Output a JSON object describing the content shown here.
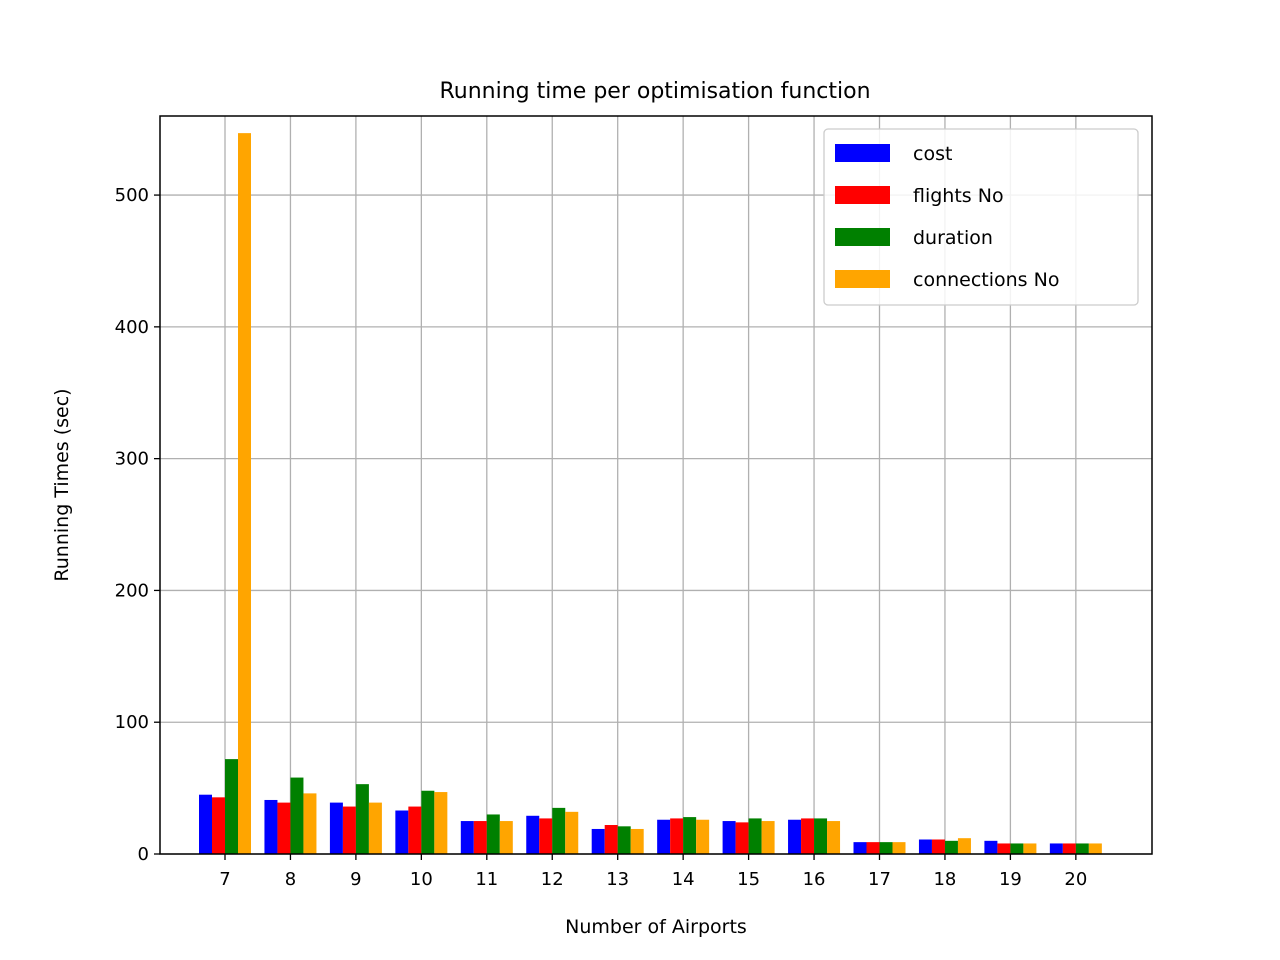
{
  "chart_data": {
    "type": "bar",
    "title": "Running time per optimisation function",
    "xlabel": "Number of Airports",
    "ylabel": "Running Times (sec)",
    "categories": [
      "7",
      "8",
      "9",
      "10",
      "11",
      "12",
      "13",
      "14",
      "15",
      "16",
      "17",
      "18",
      "19",
      "20"
    ],
    "ylim": [
      0,
      560
    ],
    "yticks": [
      0,
      100,
      200,
      300,
      400,
      500
    ],
    "grid": true,
    "legend_position": "top-right",
    "series": [
      {
        "name": "cost",
        "color": "#0000ff",
        "values": [
          45,
          41,
          39,
          33,
          25,
          29,
          19,
          26,
          25,
          26,
          9,
          11,
          10,
          8
        ]
      },
      {
        "name": "flights No",
        "color": "#ff0000",
        "values": [
          43,
          39,
          36,
          36,
          25,
          27,
          22,
          27,
          24,
          27,
          9,
          11,
          8,
          8
        ]
      },
      {
        "name": "duration",
        "color": "#008000",
        "values": [
          72,
          58,
          53,
          48,
          30,
          35,
          21,
          28,
          27,
          27,
          9,
          10,
          8,
          8
        ]
      },
      {
        "name": "connections No",
        "color": "#ffa500",
        "values": [
          547,
          46,
          39,
          47,
          25,
          32,
          19,
          26,
          25,
          25,
          9,
          12,
          8,
          8
        ]
      }
    ]
  }
}
